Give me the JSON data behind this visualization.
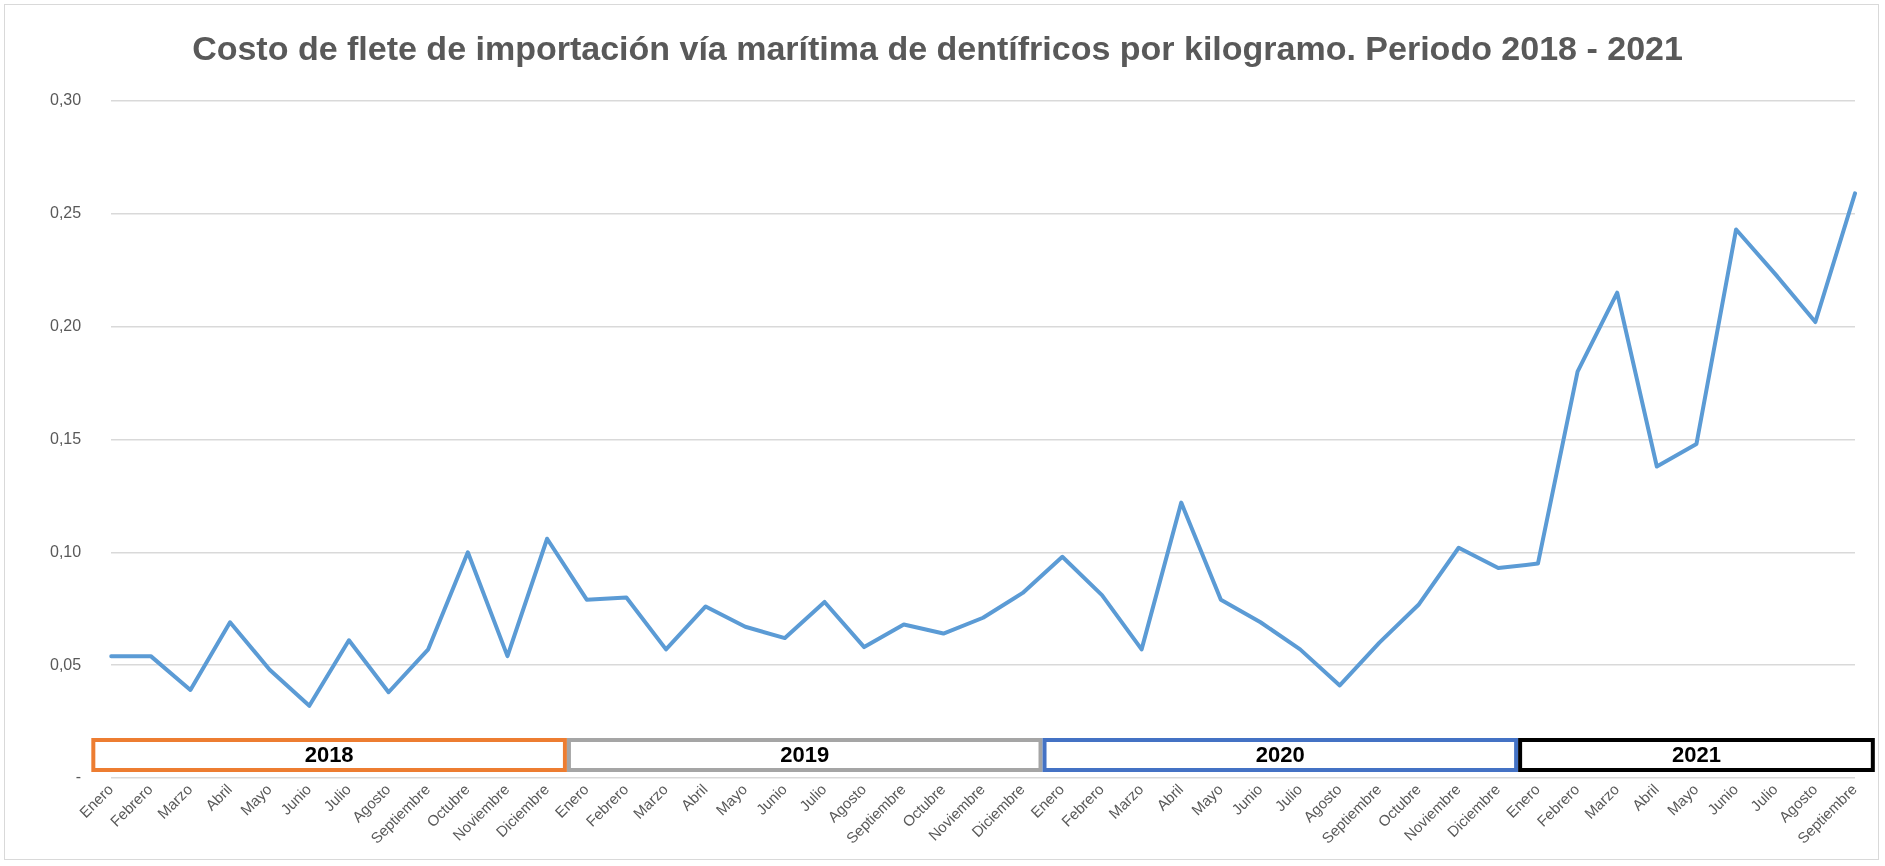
{
  "chart_data": {
    "type": "line",
    "title": "Costo de flete de importación vía marítima de dentífricos por kilogramo. Periodo 2018 - 2021",
    "categories": [
      "Enero",
      "Febrero",
      "Marzo",
      "Abril",
      "Mayo",
      "Junio",
      "Julio",
      "Agosto",
      "Septiembre",
      "Octubre",
      "Noviembre",
      "Diciembre",
      "Enero",
      "Febrero",
      "Marzo",
      "Abril",
      "Mayo",
      "Junio",
      "Julio",
      "Agosto",
      "Septiembre",
      "Octubre",
      "Noviembre",
      "Diciembre",
      "Enero",
      "Febrero",
      "Marzo",
      "Abril",
      "Mayo",
      "Junio",
      "Julio",
      "Agosto",
      "Septiembre",
      "Octubre",
      "Noviembre",
      "Diciembre",
      "Enero",
      "Febrero",
      "Marzo",
      "Abril",
      "Mayo",
      "Junio",
      "Julio",
      "Agosto",
      "Septiembre"
    ],
    "series": [
      {
        "color": "#5b9bd5",
        "values": [
          0.054,
          0.054,
          0.039,
          0.069,
          0.048,
          0.032,
          0.061,
          0.038,
          0.057,
          0.1,
          0.054,
          0.106,
          0.079,
          0.08,
          0.057,
          0.076,
          0.067,
          0.062,
          0.078,
          0.058,
          0.068,
          0.064,
          0.071,
          0.082,
          0.098,
          0.081,
          0.057,
          0.122,
          0.079,
          0.069,
          0.057,
          0.041,
          0.06,
          0.077,
          0.102,
          0.093,
          0.095,
          0.18,
          0.215,
          0.138,
          0.148,
          0.243,
          0.223,
          0.202,
          0.259
        ]
      }
    ],
    "ylim": [
      0,
      0.3
    ],
    "yticks": [
      {
        "value": 0,
        "label": "-"
      },
      {
        "value": 0.05,
        "label": "0,05"
      },
      {
        "value": 0.1,
        "label": "0,10"
      },
      {
        "value": 0.15,
        "label": "0,15"
      },
      {
        "value": 0.2,
        "label": "0,20"
      },
      {
        "value": 0.25,
        "label": "0,25"
      },
      {
        "value": 0.3,
        "label": "0,30"
      }
    ],
    "grid": "y",
    "legend": false,
    "marker": "none",
    "line_style": "solid",
    "annotations": [
      "2018",
      "2019",
      "2020",
      "2021"
    ]
  }
}
